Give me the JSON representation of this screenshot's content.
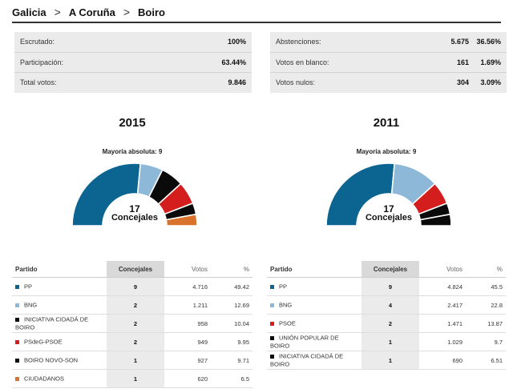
{
  "breadcrumb": {
    "items": [
      "Galicia",
      "A Coruña",
      "Boiro"
    ],
    "separator": ">"
  },
  "stats_left": [
    {
      "label": "Escrutado:",
      "value": "100%"
    },
    {
      "label": "Participación:",
      "value": "63.44%"
    },
    {
      "label": "Total votos:",
      "value": "9.846"
    }
  ],
  "stats_right": [
    {
      "label": "Abstenciones:",
      "value": "5.675",
      "pct": "36.56%"
    },
    {
      "label": "Votos en blanco:",
      "value": "161",
      "pct": "1.69%"
    },
    {
      "label": "Votos nulos:",
      "value": "304",
      "pct": "3.09%"
    }
  ],
  "colors": {
    "PP": "#0c6591",
    "BNG": "#8eb8d8",
    "black": "#0a0a0a",
    "PSOE": "#d41e1e",
    "CIUDADANOS": "#d9722a"
  },
  "years": [
    {
      "year": "2015",
      "majority": "Mayoría absoluta: 9",
      "center_num": "17",
      "center_word": "Concejales",
      "headers": [
        "Partido",
        "Concejales",
        "Votos",
        "%"
      ],
      "parties": [
        {
          "name": "PP",
          "seats": 9,
          "votes": "4.716",
          "pct": "49.42",
          "color": "#0c6591"
        },
        {
          "name": "BNG",
          "seats": 2,
          "votes": "1.211",
          "pct": "12.69",
          "color": "#8eb8d8"
        },
        {
          "name": "INICIATIVA CIDADÁ DE BOIRO",
          "seats": 2,
          "votes": "958",
          "pct": "10.04",
          "color": "#0a0a0a"
        },
        {
          "name": "PSdeG-PSOE",
          "seats": 2,
          "votes": "949",
          "pct": "9.95",
          "color": "#d41e1e"
        },
        {
          "name": "BOIRO NOVO-SON",
          "seats": 1,
          "votes": "927",
          "pct": "9.71",
          "color": "#0a0a0a"
        },
        {
          "name": "CIUDADANOS",
          "seats": 1,
          "votes": "620",
          "pct": "6.5",
          "color": "#d9722a"
        }
      ]
    },
    {
      "year": "2011",
      "majority": "Mayoría absoluta: 9",
      "center_num": "17",
      "center_word": "Concejales",
      "headers": [
        "Partido",
        "Concejales",
        "Votos",
        "%"
      ],
      "parties": [
        {
          "name": "PP",
          "seats": 9,
          "votes": "4.824",
          "pct": "45.5",
          "color": "#0c6591"
        },
        {
          "name": "BNG",
          "seats": 4,
          "votes": "2.417",
          "pct": "22.8",
          "color": "#8eb8d8"
        },
        {
          "name": "PSOE",
          "seats": 2,
          "votes": "1.471",
          "pct": "13.87",
          "color": "#d41e1e"
        },
        {
          "name": "UNIÓN POPULAR DE BOIRO",
          "seats": 1,
          "votes": "1.029",
          "pct": "9.7",
          "color": "#0a0a0a"
        },
        {
          "name": "INICIATIVA CIDADÁ DE BOIRO",
          "seats": 1,
          "votes": "690",
          "pct": "6.51",
          "color": "#0a0a0a"
        }
      ]
    }
  ]
}
